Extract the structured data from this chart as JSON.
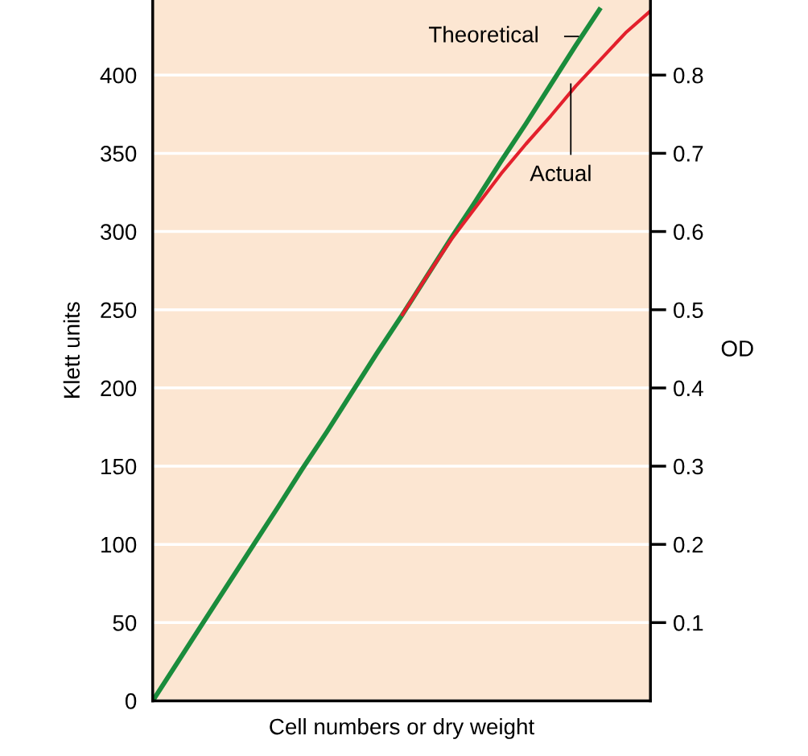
{
  "chart_data": {
    "type": "line",
    "xlabel": "Cell numbers or dry weight",
    "ylabel": "Klett units",
    "y2label": "OD",
    "categories": [
      null,
      null,
      null,
      null,
      null,
      null,
      null,
      null,
      null,
      null,
      null,
      null,
      null,
      null,
      null,
      null,
      null,
      null,
      null,
      null,
      null
    ],
    "series": [
      {
        "name": "Theoretical",
        "color": "#1a8c3c",
        "values": [
          0,
          24.6,
          49.3,
          73.9,
          98.5,
          123,
          148,
          172,
          197,
          222,
          246,
          271,
          296,
          320,
          345,
          369,
          394,
          419,
          443,
          null,
          null
        ]
      },
      {
        "name": "Actual",
        "color": "#e3202c",
        "values": [
          null,
          null,
          null,
          null,
          null,
          null,
          null,
          null,
          null,
          null,
          246,
          271,
          295,
          316,
          337,
          356,
          374,
          393,
          410,
          427,
          441
        ]
      }
    ],
    "ylim": [
      0,
      448
    ],
    "yticks": [
      0,
      50,
      100,
      150,
      200,
      250,
      300,
      350,
      400
    ],
    "y2lim": [
      0,
      0.896
    ],
    "y2ticks": [
      0.1,
      0.2,
      0.3,
      0.4,
      0.5,
      0.6,
      0.7,
      0.8
    ],
    "grid": "y",
    "legend": false,
    "marker": "none",
    "line_style": "solid"
  }
}
